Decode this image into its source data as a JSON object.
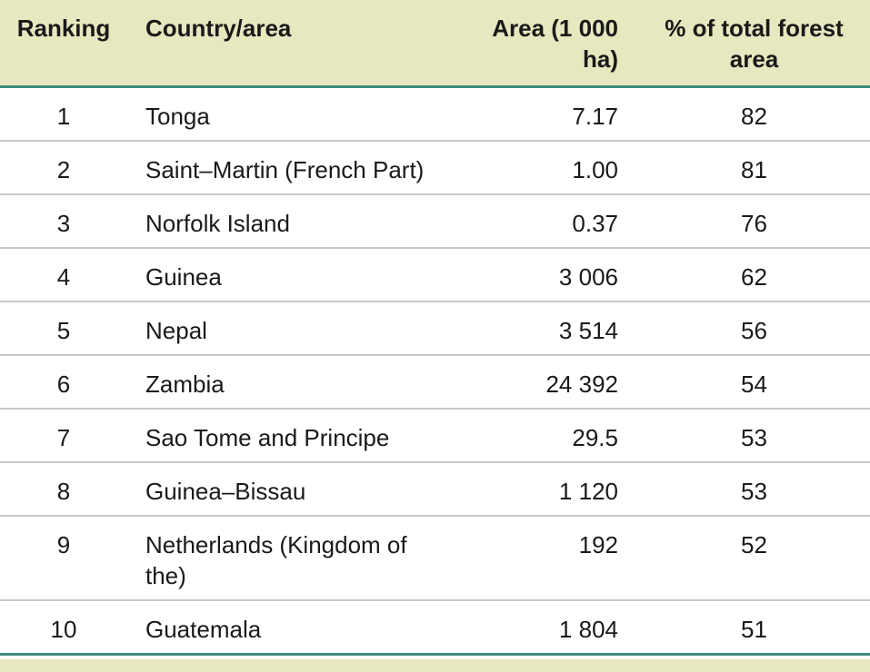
{
  "table": {
    "headers": {
      "rank": "Ranking",
      "country": "Country/area",
      "area": "Area (1 000 ha)",
      "pct": "% of total forest area"
    },
    "rows": [
      {
        "rank": "1",
        "country": "Tonga",
        "area": "7.17",
        "pct": "82"
      },
      {
        "rank": "2",
        "country": "Saint–Martin (French Part)",
        "area": "1.00",
        "pct": "81"
      },
      {
        "rank": "3",
        "country": "Norfolk Island",
        "area": "0.37",
        "pct": "76"
      },
      {
        "rank": "4",
        "country": "Guinea",
        "area": "3 006",
        "pct": "62"
      },
      {
        "rank": "5",
        "country": "Nepal",
        "area": "3 514",
        "pct": "56"
      },
      {
        "rank": "6",
        "country": "Zambia",
        "area": "24 392",
        "pct": "54"
      },
      {
        "rank": "7",
        "country": "Sao Tome and Principe",
        "area": "29.5",
        "pct": "53"
      },
      {
        "rank": "8",
        "country": "Guinea–Bissau",
        "area": "1 120",
        "pct": "53"
      },
      {
        "rank": "9",
        "country": "Netherlands (Kingdom of the)",
        "area": "192",
        "pct": "52"
      },
      {
        "rank": "10",
        "country": "Guatemala",
        "area": "1 804",
        "pct": "51"
      }
    ]
  },
  "colors": {
    "header_bg": "#e7e8c0",
    "rule": "#3d8a7e",
    "row_divider": "#c8c8c8"
  }
}
